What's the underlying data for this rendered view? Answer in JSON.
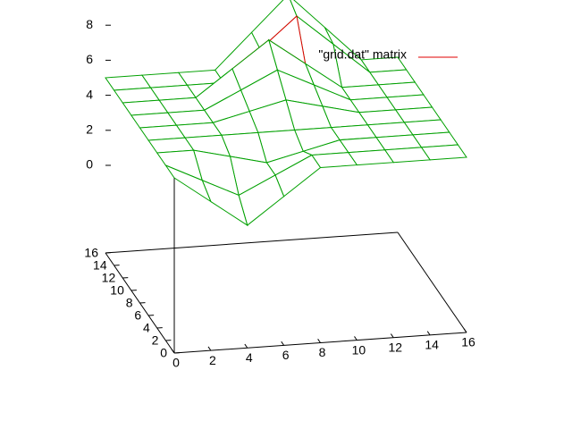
{
  "chart_data": {
    "type": "surface",
    "x": [
      0,
      2,
      4,
      6,
      8,
      10,
      12,
      14,
      16
    ],
    "y": [
      0,
      2,
      4,
      6,
      8,
      10,
      12,
      14,
      16
    ],
    "z": [
      [
        5,
        3.5,
        2,
        3.5,
        5,
        5,
        5,
        5,
        5
      ],
      [
        5,
        4,
        3,
        4,
        5,
        5,
        5,
        5,
        5
      ],
      [
        5,
        5,
        4.5,
        4,
        4.5,
        5,
        5,
        5,
        5
      ],
      [
        5,
        5,
        5,
        5,
        5,
        5,
        5,
        5,
        5
      ],
      [
        5,
        5,
        5,
        5.5,
        6,
        5.5,
        5,
        5,
        5
      ],
      [
        5,
        5,
        5,
        6,
        7,
        6,
        5,
        5,
        5
      ],
      [
        5,
        5,
        5,
        6.5,
        8,
        6.5,
        5,
        5,
        5
      ],
      [
        5,
        5,
        5,
        5,
        6.75,
        8.5,
        6.75,
        5,
        5
      ],
      [
        5,
        5,
        5,
        5,
        7,
        9,
        7,
        5,
        5
      ]
    ],
    "xlim": [
      0,
      16
    ],
    "ylim": [
      0,
      16
    ],
    "zlim": [
      -5,
      10
    ],
    "xticks": [
      0,
      2,
      4,
      6,
      8,
      10,
      12,
      14,
      16
    ],
    "yticks": [
      0,
      2,
      4,
      6,
      8,
      10,
      12,
      14,
      16
    ],
    "zticks": [
      0,
      2,
      4,
      6,
      8
    ],
    "top_color": "#00a000",
    "bottom_color": "#e00000",
    "legend": {
      "label": "\"grid.dat\" matrix",
      "color": "#e00000"
    }
  }
}
